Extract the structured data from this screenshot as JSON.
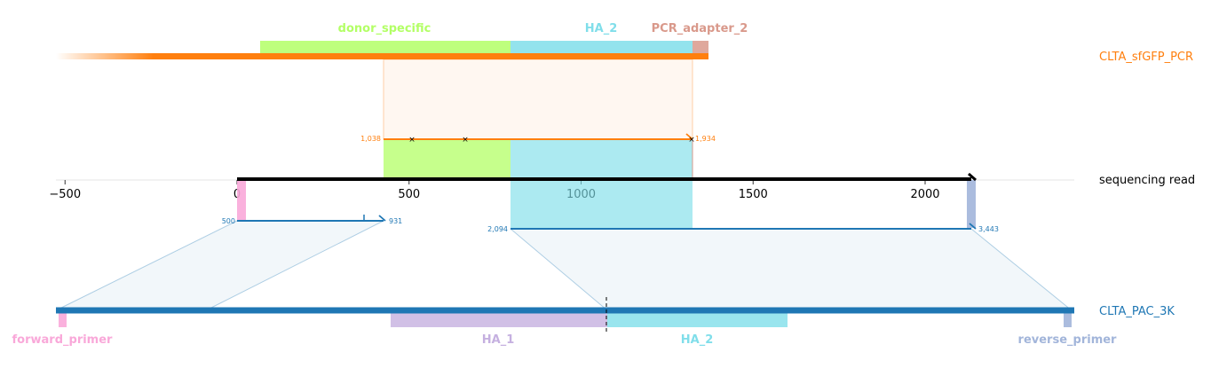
{
  "colors": {
    "orange": "#ff7f0e",
    "blue": "#1f77b4",
    "black": "#000000",
    "donor_specific": "#b3ff66",
    "ha2": "#80deea",
    "pcr_adapter": "#d9998b",
    "forward_primer": "#f9a8d9",
    "ha1": "#c5b0e0",
    "reverse_primer": "#a2b5da",
    "alignment_fill": "#c6dbe9"
  },
  "axis": {
    "xlim": [
      -520,
      2420
    ],
    "ticks": [
      -500,
      0,
      500,
      1000,
      1500,
      2000
    ]
  },
  "tracks": {
    "amplicon": {
      "name": "CLTA_sfGFP_PCR",
      "features": [
        {
          "name": "donor_specific",
          "color_key": "donor_specific"
        },
        {
          "name": "HA_2",
          "color_key": "ha2"
        },
        {
          "name": "PCR_adapter_2",
          "color_key": "pcr_adapter"
        }
      ]
    },
    "read": {
      "name": "sequencing read"
    },
    "reference": {
      "name": "CLTA_PAC_3K",
      "features": [
        {
          "name": "forward_primer",
          "color_key": "forward_primer"
        },
        {
          "name": "HA_1",
          "color_key": "ha1"
        },
        {
          "name": "HA_2",
          "color_key": "ha2"
        },
        {
          "name": "reverse_primer",
          "color_key": "reverse_primer"
        }
      ]
    }
  },
  "alignments": [
    {
      "target": "CLTA_sfGFP_PCR",
      "read_start": 425,
      "read_end": 1320,
      "target_start_label": "1,038",
      "target_end_label": "1,934",
      "mismatch_positions": [
        505,
        660,
        1320
      ]
    },
    {
      "target": "CLTA_PAC_3K",
      "read_start": 0,
      "read_end": 430,
      "target_start_label": "500",
      "target_end_label": "931",
      "mismatch_positions": [
        365
      ]
    },
    {
      "target": "CLTA_PAC_3K",
      "read_start": 790,
      "read_end": 2140,
      "target_start_label": "2,094",
      "target_end_label": "3,443",
      "mismatch_positions": []
    }
  ]
}
